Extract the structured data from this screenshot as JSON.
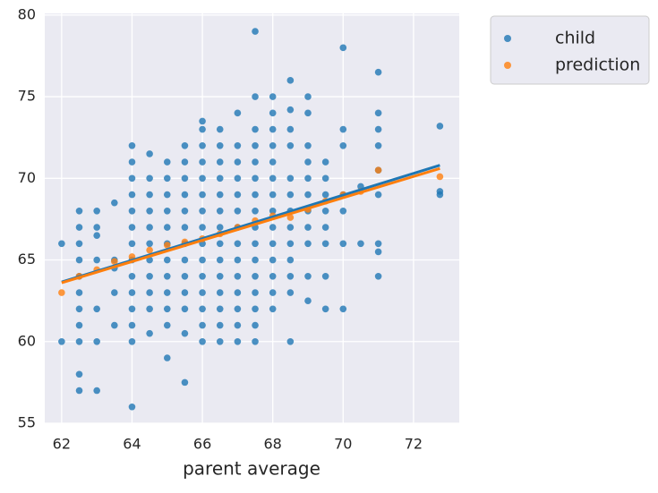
{
  "chart_data": {
    "type": "scatter",
    "xlabel": "parent average",
    "xlim": [
      61.52,
      73.3
    ],
    "ylim": [
      55,
      80.1
    ],
    "xticks": [
      62,
      64,
      66,
      68,
      70,
      72
    ],
    "yticks": [
      55,
      60,
      65,
      70,
      75,
      80
    ],
    "grid": true,
    "legend": "outside upper right",
    "series": [
      {
        "name": "child",
        "color": "#1f77b4",
        "x": [
          62,
          62,
          62.5,
          62.5,
          62.5,
          62.5,
          62.5,
          62.5,
          62.5,
          62.5,
          62.5,
          62.5,
          62.5,
          63,
          63,
          63,
          63,
          63,
          63,
          63,
          63.5,
          63.5,
          63.5,
          63.5,
          63.5,
          64,
          64,
          64,
          64,
          64,
          64,
          64,
          64,
          64,
          64,
          64,
          64,
          64,
          64,
          64.5,
          64.5,
          64.5,
          64.5,
          64.5,
          64.5,
          64.5,
          64.5,
          64.5,
          64.5,
          64.5,
          65,
          65,
          65,
          65,
          65,
          65,
          65,
          65,
          65,
          65,
          65,
          65,
          65.5,
          65.5,
          65.5,
          65.5,
          65.5,
          65.5,
          65.5,
          65.5,
          65.5,
          65.5,
          65.5,
          65.5,
          65.5,
          66,
          66,
          66,
          66,
          66,
          66,
          66,
          66,
          66,
          66,
          66,
          66,
          66,
          66,
          66,
          66.5,
          66.5,
          66.5,
          66.5,
          66.5,
          66.5,
          66.5,
          66.5,
          66.5,
          66.5,
          66.5,
          66.5,
          66.5,
          66.5,
          67,
          67,
          67,
          67,
          67,
          67,
          67,
          67,
          67,
          67,
          67,
          67,
          67,
          67,
          67.5,
          67.5,
          67.5,
          67.5,
          67.5,
          67.5,
          67.5,
          67.5,
          67.5,
          67.5,
          67.5,
          67.5,
          67.5,
          67.5,
          67.5,
          67.5,
          68,
          68,
          68,
          68,
          68,
          68,
          68,
          68,
          68,
          68,
          68,
          68,
          68,
          68,
          68.5,
          68.5,
          68.5,
          68.5,
          68.5,
          68.5,
          68.5,
          68.5,
          68.5,
          68.5,
          68.5,
          68.5,
          68.5,
          69,
          69,
          69,
          69,
          69,
          69,
          69,
          69,
          69,
          69,
          69,
          69.5,
          69.5,
          69.5,
          69.5,
          69.5,
          69.5,
          69.5,
          69.5,
          70,
          70,
          70,
          70,
          70,
          70,
          70,
          70.5,
          70.5,
          71,
          71,
          71,
          71,
          71,
          71,
          71,
          71,
          71,
          72.75,
          72.75,
          72.75
        ],
        "values": [
          66,
          60,
          68,
          67,
          66,
          65,
          64,
          63,
          62,
          61,
          60,
          58,
          57,
          68,
          67,
          66.5,
          65,
          62,
          60,
          57,
          68.5,
          65,
          64.5,
          63,
          61,
          72,
          71,
          70,
          69,
          68,
          67,
          66,
          65,
          64,
          63,
          62,
          61,
          60,
          56,
          71.5,
          70,
          69,
          68,
          67,
          66,
          65,
          64,
          63,
          62,
          60.5,
          71,
          70,
          69,
          68,
          67,
          66,
          65,
          64,
          63,
          62,
          61,
          59,
          72,
          71,
          70,
          69,
          68,
          67,
          66,
          65,
          64,
          63,
          62,
          60.5,
          57.5,
          73.5,
          73,
          72,
          71,
          70,
          69,
          68,
          67,
          66,
          65,
          64,
          63,
          62,
          61,
          60,
          73,
          72,
          71,
          70,
          69,
          68,
          67,
          66,
          65,
          64,
          63,
          62,
          61,
          60,
          74,
          72,
          71,
          70,
          69,
          68,
          67,
          66,
          65,
          64,
          63,
          62,
          61,
          60,
          79,
          75,
          73,
          72,
          71,
          70,
          69,
          68,
          67,
          66,
          65,
          64,
          63,
          62,
          61,
          60,
          75,
          74,
          73,
          72,
          71,
          70,
          69,
          68,
          67,
          66,
          65,
          64,
          63,
          62,
          76,
          74.2,
          73,
          72,
          70,
          69,
          68,
          67,
          66,
          65,
          64,
          63,
          60,
          75,
          74,
          72,
          71,
          70,
          69,
          68,
          67,
          66,
          64,
          62.5,
          71,
          70,
          69,
          68,
          67,
          66,
          64,
          62,
          78,
          73,
          72,
          69,
          68,
          66,
          62,
          66,
          69.5,
          76.5,
          74,
          73,
          72,
          70.5,
          69,
          66,
          65.5,
          64,
          73.2,
          69.2,
          69
        ],
        "fit": {
          "x": [
            62,
            72.75
          ],
          "values": [
            63.65,
            70.8
          ]
        }
      },
      {
        "name": "prediction",
        "color": "#ff7f0e",
        "x": [
          62,
          62.5,
          63,
          63.5,
          64,
          64.5,
          65,
          65.5,
          66,
          66.5,
          67,
          67.5,
          68,
          68.5,
          69,
          69.5,
          70,
          70.5,
          71,
          72.75
        ],
        "values": [
          63.0,
          64.0,
          64.4,
          64.9,
          65.2,
          65.6,
          65.9,
          66.1,
          66.3,
          66.6,
          67.0,
          67.4,
          67.7,
          67.6,
          68.1,
          68.6,
          69.0,
          69.2,
          70.5,
          70.1
        ],
        "fit": {
          "x": [
            62,
            72.75
          ],
          "values": [
            63.6,
            70.6
          ]
        }
      }
    ]
  }
}
